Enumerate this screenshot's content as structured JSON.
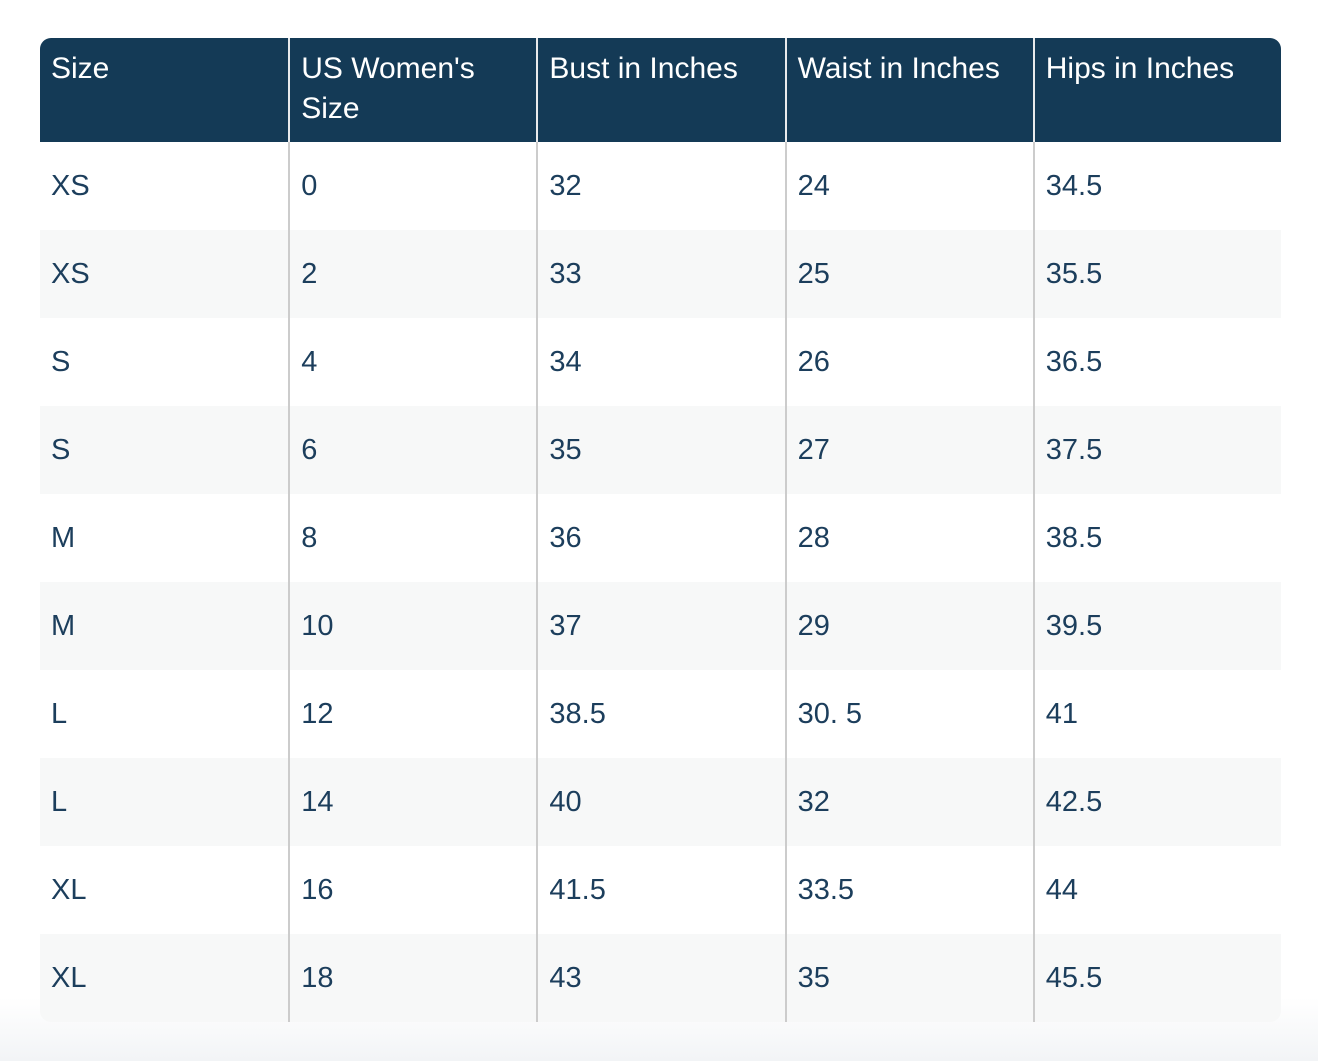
{
  "chart_data": {
    "type": "table",
    "columns": [
      "Size",
      "US Women's Size",
      "Bust in Inches",
      "Waist in Inches",
      "Hips in Inches"
    ],
    "rows": [
      [
        "XS",
        "0",
        "32",
        "24",
        "34.5"
      ],
      [
        "XS",
        "2",
        "33",
        "25",
        "35.5"
      ],
      [
        "S",
        "4",
        "34",
        "26",
        "36.5"
      ],
      [
        "S",
        "6",
        "35",
        "27",
        "37.5"
      ],
      [
        "M",
        "8",
        "36",
        "28",
        "38.5"
      ],
      [
        "M",
        "10",
        "37",
        "29",
        "39.5"
      ],
      [
        "L",
        "12",
        "38.5",
        "30. 5",
        "41"
      ],
      [
        "L",
        "14",
        "40",
        "32",
        "42.5"
      ],
      [
        "XL",
        "16",
        "41.5",
        "33.5",
        "44"
      ],
      [
        "XL",
        "18",
        "43",
        "35",
        "45.5"
      ]
    ]
  },
  "colors": {
    "header_bg": "#143A56",
    "header_text": "#FFFFFF",
    "body_text": "#1C3E5C",
    "row_bg": "#FFFFFF",
    "row_alt_bg": "#F7F8F8",
    "divider": "#CCCCCC"
  }
}
